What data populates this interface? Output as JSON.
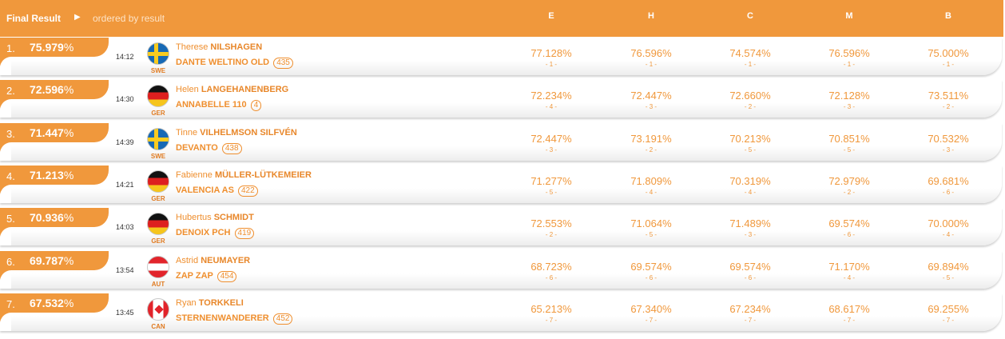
{
  "header": {
    "title": "Final Result",
    "subtitle": "ordered by result",
    "columns": [
      "E",
      "H",
      "C",
      "M",
      "B"
    ]
  },
  "rows": [
    {
      "rank": "1.",
      "score": "75.979",
      "pct": "%",
      "time": "14:12",
      "flag": "swe-flag-icon",
      "noc": "SWE",
      "first": "Therese",
      "last": "NILSHAGEN",
      "horse": "DANTE WELTINO OLD",
      "num": "435",
      "judges": [
        {
          "p": "77.128%",
          "r": "- 1 -"
        },
        {
          "p": "76.596%",
          "r": "- 1 -"
        },
        {
          "p": "74.574%",
          "r": "- 1 -"
        },
        {
          "p": "76.596%",
          "r": "- 1 -"
        },
        {
          "p": "75.000%",
          "r": "- 1 -"
        }
      ]
    },
    {
      "rank": "2.",
      "score": "72.596",
      "pct": "%",
      "time": "14:30",
      "flag": "ger-flag-icon",
      "noc": "GER",
      "first": "Helen",
      "last": "LANGEHANENBERG",
      "horse": "ANNABELLE 110",
      "num": "4",
      "judges": [
        {
          "p": "72.234%",
          "r": "- 4 -"
        },
        {
          "p": "72.447%",
          "r": "- 3 -"
        },
        {
          "p": "72.660%",
          "r": "- 2 -"
        },
        {
          "p": "72.128%",
          "r": "- 3 -"
        },
        {
          "p": "73.511%",
          "r": "- 2 -"
        }
      ]
    },
    {
      "rank": "3.",
      "score": "71.447",
      "pct": "%",
      "time": "14:39",
      "flag": "swe-flag-icon",
      "noc": "SWE",
      "first": "Tinne",
      "last": "VILHELMSON SILFVÉN",
      "horse": "DEVANTO",
      "num": "438",
      "judges": [
        {
          "p": "72.447%",
          "r": "- 3 -"
        },
        {
          "p": "73.191%",
          "r": "- 2 -"
        },
        {
          "p": "70.213%",
          "r": "- 5 -"
        },
        {
          "p": "70.851%",
          "r": "- 5 -"
        },
        {
          "p": "70.532%",
          "r": "- 3 -"
        }
      ]
    },
    {
      "rank": "4.",
      "score": "71.213",
      "pct": "%",
      "time": "14:21",
      "flag": "ger-flag-icon",
      "noc": "GER",
      "first": "Fabienne",
      "last": "MÜLLER-LÜTKEMEIER",
      "horse": "VALENCIA AS",
      "num": "422",
      "judges": [
        {
          "p": "71.277%",
          "r": "- 5 -"
        },
        {
          "p": "71.809%",
          "r": "- 4 -"
        },
        {
          "p": "70.319%",
          "r": "- 4 -"
        },
        {
          "p": "72.979%",
          "r": "- 2 -"
        },
        {
          "p": "69.681%",
          "r": "- 6 -"
        }
      ]
    },
    {
      "rank": "5.",
      "score": "70.936",
      "pct": "%",
      "time": "14:03",
      "flag": "ger-flag-icon",
      "noc": "GER",
      "first": "Hubertus",
      "last": "SCHMIDT",
      "horse": "DENOIX PCH",
      "num": "419",
      "judges": [
        {
          "p": "72.553%",
          "r": "- 2 -"
        },
        {
          "p": "71.064%",
          "r": "- 5 -"
        },
        {
          "p": "71.489%",
          "r": "- 3 -"
        },
        {
          "p": "69.574%",
          "r": "- 6 -"
        },
        {
          "p": "70.000%",
          "r": "- 4 -"
        }
      ]
    },
    {
      "rank": "6.",
      "score": "69.787",
      "pct": "%",
      "time": "13:54",
      "flag": "aut-flag-icon",
      "noc": "AUT",
      "first": "Astrid",
      "last": "NEUMAYER",
      "horse": "ZAP ZAP",
      "num": "454",
      "judges": [
        {
          "p": "68.723%",
          "r": "- 6 -"
        },
        {
          "p": "69.574%",
          "r": "- 6 -"
        },
        {
          "p": "69.574%",
          "r": "- 6 -"
        },
        {
          "p": "71.170%",
          "r": "- 4 -"
        },
        {
          "p": "69.894%",
          "r": "- 5 -"
        }
      ]
    },
    {
      "rank": "7.",
      "score": "67.532",
      "pct": "%",
      "time": "13:45",
      "flag": "can-flag-icon",
      "noc": "CAN",
      "first": "Ryan",
      "last": "TORKKELI",
      "horse": "STERNENWANDERER",
      "num": "452",
      "judges": [
        {
          "p": "65.213%",
          "r": "- 7 -"
        },
        {
          "p": "67.340%",
          "r": "- 7 -"
        },
        {
          "p": "67.234%",
          "r": "- 7 -"
        },
        {
          "p": "68.617%",
          "r": "- 7 -"
        },
        {
          "p": "69.255%",
          "r": "- 7 -"
        }
      ]
    }
  ],
  "colors": {
    "accent": "#f0983c",
    "text_accent": "#ef8f2f"
  }
}
